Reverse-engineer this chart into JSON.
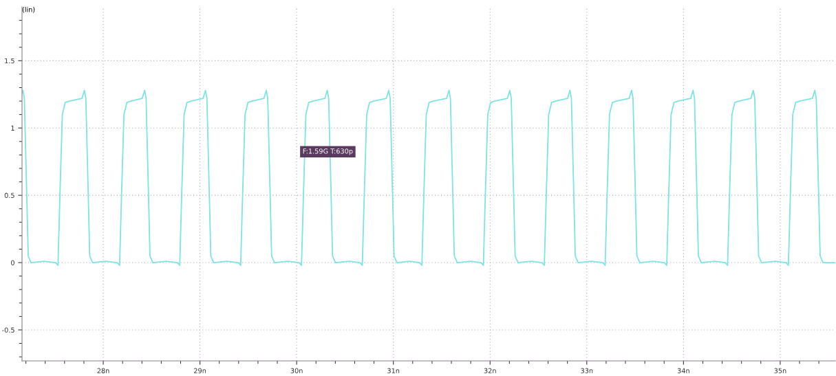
{
  "chart_data": {
    "type": "line",
    "ylabel": "(lin)",
    "x": [
      27.16,
      27.17,
      27.184,
      27.209,
      27.224,
      27.254,
      27.39,
      27.507,
      27.532,
      27.552,
      27.577,
      27.607,
      27.647,
      27.78,
      27.805,
      27.82,
      27.845,
      27.86,
      27.89,
      28.03,
      28.144,
      28.169,
      28.189,
      28.214,
      28.244,
      28.284,
      28.403,
      28.428,
      28.443,
      28.468,
      28.483,
      28.513,
      28.65,
      28.766,
      28.791,
      28.811,
      28.836,
      28.866,
      28.906,
      29.032,
      29.057,
      29.072,
      29.097,
      29.112,
      29.142,
      29.28,
      29.396,
      29.421,
      29.441,
      29.466,
      29.496,
      29.536,
      29.661,
      29.686,
      29.701,
      29.726,
      29.741,
      29.771,
      29.91,
      30.025,
      30.05,
      30.07,
      30.095,
      30.125,
      30.165,
      30.291,
      30.316,
      30.331,
      30.356,
      30.371,
      30.401,
      30.54,
      30.654,
      30.679,
      30.699,
      30.724,
      30.754,
      30.794,
      30.927,
      30.952,
      30.967,
      30.992,
      31.007,
      31.037,
      31.17,
      31.27,
      31.295,
      31.315,
      31.34,
      31.37,
      31.41,
      31.55,
      31.575,
      31.59,
      31.615,
      31.63,
      31.66,
      31.8,
      31.906,
      31.931,
      31.951,
      31.976,
      32.006,
      32.046,
      32.179,
      32.204,
      32.219,
      32.244,
      32.259,
      32.289,
      32.43,
      32.536,
      32.561,
      32.581,
      32.606,
      32.636,
      32.676,
      32.801,
      32.826,
      32.841,
      32.866,
      32.881,
      32.911,
      33.05,
      33.165,
      33.19,
      33.21,
      33.235,
      33.265,
      33.305,
      33.438,
      33.463,
      33.478,
      33.503,
      33.518,
      33.548,
      33.69,
      33.802,
      33.827,
      33.847,
      33.872,
      33.902,
      33.942,
      34.074,
      34.099,
      34.114,
      34.139,
      34.154,
      34.184,
      34.32,
      34.431,
      34.456,
      34.476,
      34.501,
      34.531,
      34.571,
      34.697,
      34.722,
      34.737,
      34.762,
      34.777,
      34.807,
      34.95,
      35.06,
      35.085,
      35.105,
      35.13,
      35.16,
      35.2,
      35.333,
      35.358,
      35.373,
      35.398,
      35.413,
      35.443,
      35.57
    ],
    "series": [
      {
        "color": "#7fe3e3",
        "values": [
          1.26,
          1.28,
          1.22,
          0.5,
          0.05,
          0.0,
          0.01,
          0.0,
          -0.02,
          0.5,
          1.1,
          1.19,
          1.2,
          1.22,
          1.28,
          1.22,
          0.5,
          0.05,
          0.0,
          0.01,
          0.0,
          -0.02,
          0.5,
          1.1,
          1.19,
          1.2,
          1.22,
          1.28,
          1.22,
          0.5,
          0.05,
          0.0,
          0.01,
          0.0,
          -0.02,
          0.5,
          1.1,
          1.19,
          1.2,
          1.22,
          1.28,
          1.22,
          0.5,
          0.05,
          0.0,
          0.01,
          0.0,
          -0.02,
          0.5,
          1.1,
          1.19,
          1.2,
          1.22,
          1.28,
          1.22,
          0.5,
          0.05,
          0.0,
          0.01,
          0.0,
          -0.02,
          0.5,
          1.1,
          1.19,
          1.2,
          1.22,
          1.28,
          1.22,
          0.5,
          0.05,
          0.0,
          0.01,
          0.0,
          -0.02,
          0.5,
          1.1,
          1.19,
          1.2,
          1.22,
          1.28,
          1.22,
          0.5,
          0.05,
          0.0,
          0.01,
          0.0,
          -0.02,
          0.5,
          1.1,
          1.19,
          1.2,
          1.22,
          1.28,
          1.22,
          0.5,
          0.05,
          0.0,
          0.01,
          0.0,
          -0.02,
          0.5,
          1.1,
          1.19,
          1.2,
          1.22,
          1.28,
          1.22,
          0.5,
          0.05,
          0.0,
          0.01,
          0.0,
          -0.02,
          0.5,
          1.1,
          1.19,
          1.2,
          1.22,
          1.28,
          1.22,
          0.5,
          0.05,
          0.0,
          0.01,
          0.0,
          -0.02,
          0.5,
          1.1,
          1.19,
          1.2,
          1.22,
          1.28,
          1.22,
          0.5,
          0.05,
          0.0,
          0.01,
          0.0,
          -0.02,
          0.5,
          1.1,
          1.19,
          1.2,
          1.22,
          1.28,
          1.22,
          0.5,
          0.05,
          0.0,
          0.01,
          0.0,
          -0.02,
          0.5,
          1.1,
          1.19,
          1.2,
          1.22,
          1.28,
          1.22,
          0.5,
          0.05,
          0.0,
          0.01,
          0.0,
          -0.02,
          0.5,
          1.1,
          1.19,
          1.2,
          1.22,
          1.28,
          1.22,
          0.5,
          0.05,
          0.0,
          0.0
        ]
      }
    ],
    "xlim": [
      27.16,
      35.57
    ],
    "ylim": [
      -0.73,
      1.9
    ],
    "xticks": [
      {
        "value": 27.2,
        "label": null
      },
      {
        "value": 27.4,
        "label": null
      },
      {
        "value": 27.6,
        "label": null
      },
      {
        "value": 27.8,
        "label": null
      },
      {
        "value": 28,
        "label": "28n"
      },
      {
        "value": 28.2,
        "label": null
      },
      {
        "value": 28.4,
        "label": null
      },
      {
        "value": 28.6,
        "label": null
      },
      {
        "value": 28.8,
        "label": null
      },
      {
        "value": 29,
        "label": "29n"
      },
      {
        "value": 29.2,
        "label": null
      },
      {
        "value": 29.4,
        "label": null
      },
      {
        "value": 29.6,
        "label": null
      },
      {
        "value": 29.8,
        "label": null
      },
      {
        "value": 30,
        "label": "30n"
      },
      {
        "value": 30.2,
        "label": null
      },
      {
        "value": 30.4,
        "label": null
      },
      {
        "value": 30.6,
        "label": null
      },
      {
        "value": 30.8,
        "label": null
      },
      {
        "value": 31,
        "label": "31n"
      },
      {
        "value": 31.2,
        "label": null
      },
      {
        "value": 31.4,
        "label": null
      },
      {
        "value": 31.6,
        "label": null
      },
      {
        "value": 31.8,
        "label": null
      },
      {
        "value": 32,
        "label": "32n"
      },
      {
        "value": 32.2,
        "label": null
      },
      {
        "value": 32.4,
        "label": null
      },
      {
        "value": 32.6,
        "label": null
      },
      {
        "value": 32.8,
        "label": null
      },
      {
        "value": 33,
        "label": "33n"
      },
      {
        "value": 33.2,
        "label": null
      },
      {
        "value": 33.4,
        "label": null
      },
      {
        "value": 33.6,
        "label": null
      },
      {
        "value": 33.8,
        "label": null
      },
      {
        "value": 34,
        "label": "34n"
      },
      {
        "value": 34.2,
        "label": null
      },
      {
        "value": 34.4,
        "label": null
      },
      {
        "value": 34.6,
        "label": null
      },
      {
        "value": 34.8,
        "label": null
      },
      {
        "value": 35,
        "label": "35n"
      },
      {
        "value": 35.2,
        "label": null
      },
      {
        "value": 35.4,
        "label": null
      }
    ],
    "yticks": [
      {
        "value": -0.7,
        "label": null
      },
      {
        "value": -0.6,
        "label": null
      },
      {
        "value": -0.5,
        "label": "-0.5"
      },
      {
        "value": -0.4,
        "label": null
      },
      {
        "value": -0.3,
        "label": null
      },
      {
        "value": -0.2,
        "label": null
      },
      {
        "value": -0.1,
        "label": null
      },
      0,
      {
        "value": 0.1,
        "label": null
      },
      {
        "value": 0.2,
        "label": null
      },
      {
        "value": 0.3,
        "label": null
      },
      {
        "value": 0.4,
        "label": null
      },
      0.5,
      {
        "value": 0.6,
        "label": null
      },
      {
        "value": 0.7,
        "label": null
      },
      {
        "value": 0.8,
        "label": null
      },
      {
        "value": 0.9,
        "label": null
      },
      1,
      {
        "value": 1.1,
        "label": null
      },
      {
        "value": 1.2,
        "label": null
      },
      {
        "value": 1.3,
        "label": null
      },
      {
        "value": 1.4,
        "label": null
      },
      1.5,
      {
        "value": 1.6,
        "label": null
      },
      {
        "value": 1.7,
        "label": null
      },
      {
        "value": 1.8,
        "label": null
      }
    ],
    "grid": true,
    "line_style": "solid",
    "annotations": [
      "F:1.59G T:630p"
    ]
  }
}
